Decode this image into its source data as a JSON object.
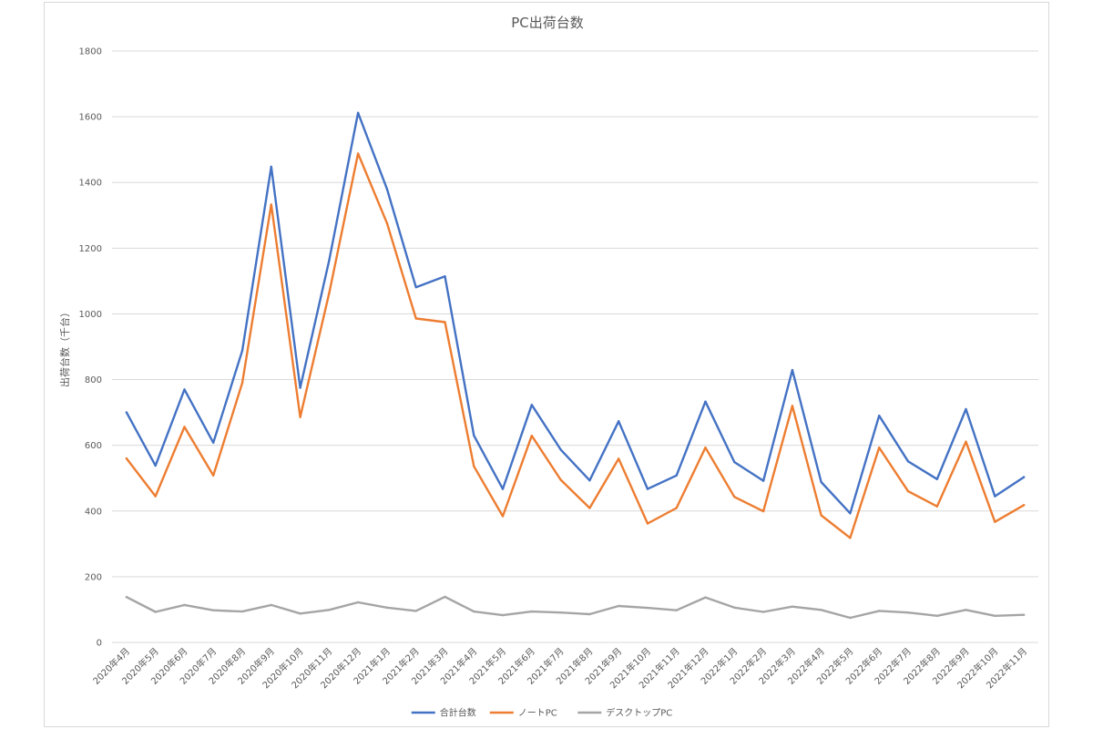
{
  "chart_data": {
    "type": "line",
    "title": "PC出荷台数",
    "ylabel": "出荷台数（千台）",
    "xlabel": "",
    "ylim": [
      0,
      1800
    ],
    "yticks": [
      0,
      200,
      400,
      600,
      800,
      1000,
      1200,
      1400,
      1600,
      1800
    ],
    "grid": true,
    "legend_position": "bottom",
    "categories": [
      "2020年4月",
      "2020年5月",
      "2020年6月",
      "2020年7月",
      "2020年8月",
      "2020年9月",
      "2020年10月",
      "2020年11月",
      "2020年12月",
      "2021年1月",
      "2021年2月",
      "2021年3月",
      "2021年4月",
      "2021年5月",
      "2021年6月",
      "2021年7月",
      "2021年8月",
      "2021年9月",
      "2021年10月",
      "2021年11月",
      "2021年12月",
      "2022年1月",
      "2022年2月",
      "2022年3月",
      "2022年4月",
      "2022年5月",
      "2022年6月",
      "2022年7月",
      "2022年8月",
      "2022年9月",
      "2022年10月",
      "2022年11月"
    ],
    "series": [
      {
        "name": "合計台数",
        "color": "#4472c4",
        "values": [
          700,
          538,
          770,
          608,
          888,
          1448,
          775,
          1163,
          1612,
          1380,
          1081,
          1114,
          630,
          467,
          723,
          587,
          493,
          673,
          467,
          508,
          733,
          549,
          492,
          829,
          488,
          393,
          690,
          551,
          497,
          710,
          445,
          503
        ]
      },
      {
        "name": "ノートPC",
        "color": "#ed7d31",
        "values": [
          560,
          445,
          656,
          508,
          790,
          1333,
          686,
          1063,
          1488,
          1276,
          986,
          975,
          536,
          384,
          629,
          495,
          409,
          559,
          362,
          409,
          593,
          443,
          399,
          720,
          387,
          318,
          593,
          460,
          414,
          611,
          367,
          418
        ]
      },
      {
        "name": "デスクトップPC",
        "color": "#a5a5a5",
        "values": [
          138,
          93,
          114,
          98,
          94,
          114,
          88,
          99,
          122,
          106,
          96,
          139,
          94,
          83,
          94,
          91,
          86,
          111,
          105,
          98,
          137,
          106,
          93,
          109,
          99,
          75,
          96,
          91,
          81,
          99,
          81,
          84
        ]
      }
    ]
  }
}
